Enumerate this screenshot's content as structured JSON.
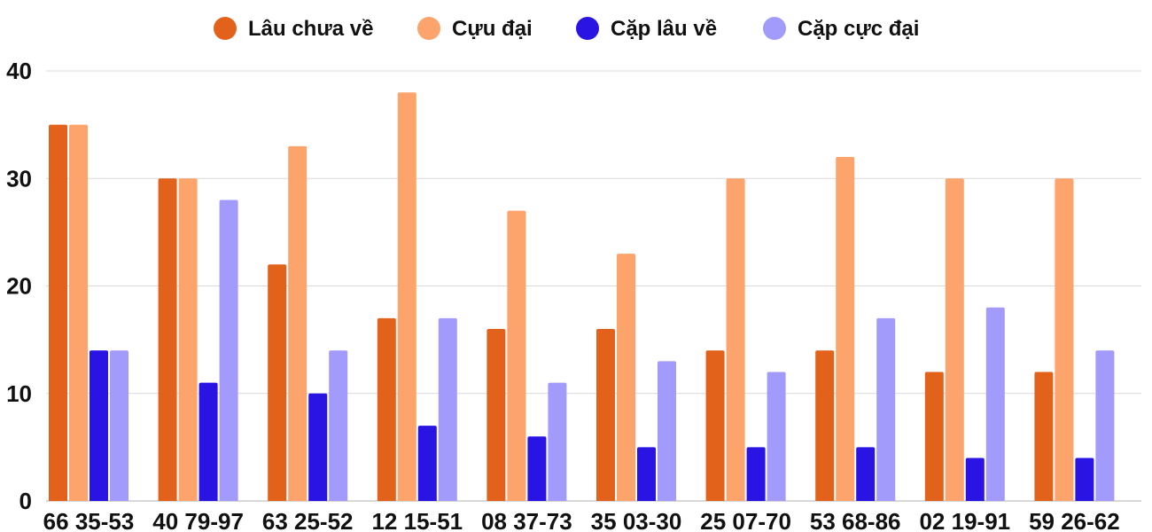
{
  "chart_data": {
    "type": "bar",
    "title": "",
    "xlabel": "",
    "ylabel": "",
    "ylim": [
      0,
      40
    ],
    "yticks": [
      0,
      10,
      20,
      30,
      40
    ],
    "grid": true,
    "legend_position": "top",
    "categories": [
      "66 35-53",
      "40 79-97",
      "63 25-52",
      "12 15-51",
      "08 37-73",
      "35 03-30",
      "25 07-70",
      "53 68-86",
      "02 19-91",
      "59 26-62"
    ],
    "series": [
      {
        "name": "Lâu chưa về",
        "color": "#e2621b",
        "values": [
          35,
          30,
          22,
          17,
          16,
          16,
          14,
          14,
          12,
          12
        ]
      },
      {
        "name": "Cựu đại",
        "color": "#fca46c",
        "values": [
          35,
          30,
          33,
          38,
          27,
          23,
          30,
          32,
          30,
          30
        ]
      },
      {
        "name": "Cặp lâu về",
        "color": "#2a14e4",
        "values": [
          14,
          11,
          10,
          7,
          6,
          5,
          5,
          5,
          4,
          4
        ]
      },
      {
        "name": "Cặp cực đại",
        "color": "#a39bfb",
        "values": [
          14,
          28,
          14,
          17,
          11,
          13,
          12,
          17,
          18,
          14
        ]
      }
    ]
  }
}
